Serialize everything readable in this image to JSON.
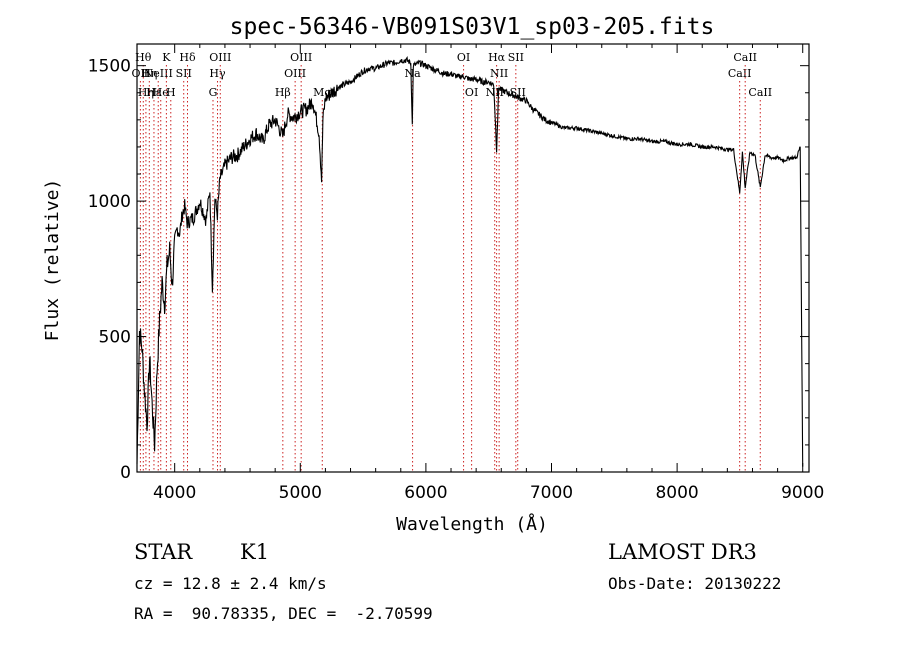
{
  "chart_data": {
    "type": "line",
    "title": "spec-56346-VB091S03V1_sp03-205.fits",
    "xlabel": "Wavelength (Å)",
    "ylabel": "Flux (relative)",
    "xlim": [
      3700,
      9050
    ],
    "ylim": [
      0,
      1580
    ],
    "x_ticks": [
      4000,
      5000,
      6000,
      7000,
      8000,
      9000
    ],
    "y_ticks": [
      0,
      500,
      1000,
      1500
    ],
    "x_tick_labels": [
      "4000",
      "5000",
      "6000",
      "7000",
      "8000",
      "9000"
    ],
    "y_tick_labels": [
      "0",
      "500",
      "1000",
      "1500"
    ],
    "grid": false,
    "series": [
      {
        "name": "flux",
        "color": "#000000",
        "x": [
          3700,
          3720,
          3740,
          3760,
          3780,
          3800,
          3820,
          3840,
          3860,
          3880,
          3900,
          3920,
          3940,
          3960,
          3980,
          4000,
          4020,
          4040,
          4060,
          4080,
          4100,
          4150,
          4200,
          4250,
          4280,
          4300,
          4320,
          4340,
          4360,
          4400,
          4450,
          4500,
          4550,
          4600,
          4650,
          4700,
          4750,
          4800,
          4860,
          4900,
          4950,
          5000,
          5050,
          5100,
          5150,
          5170,
          5180,
          5200,
          5250,
          5300,
          5350,
          5400,
          5450,
          5500,
          5550,
          5600,
          5650,
          5700,
          5750,
          5800,
          5850,
          5880,
          5892,
          5900,
          5950,
          6000,
          6050,
          6100,
          6150,
          6200,
          6250,
          6300,
          6350,
          6400,
          6450,
          6500,
          6540,
          6563,
          6580,
          6600,
          6650,
          6700,
          6750,
          6800,
          6850,
          6900,
          6950,
          7000,
          7100,
          7200,
          7300,
          7400,
          7500,
          7600,
          7700,
          7800,
          7900,
          8000,
          8100,
          8200,
          8300,
          8400,
          8450,
          8498,
          8520,
          8542,
          8580,
          8620,
          8662,
          8700,
          8750,
          8800,
          8850,
          8900,
          8950,
          8980,
          9000
        ],
        "y": [
          30,
          520,
          460,
          300,
          180,
          420,
          250,
          100,
          380,
          560,
          700,
          620,
          760,
          820,
          690,
          850,
          900,
          880,
          950,
          980,
          920,
          940,
          1000,
          930,
          1040,
          680,
          1010,
          950,
          1080,
          1130,
          1160,
          1170,
          1200,
          1230,
          1250,
          1220,
          1280,
          1300,
          1240,
          1320,
          1310,
          1330,
          1340,
          1370,
          1250,
          1080,
          1300,
          1380,
          1400,
          1420,
          1430,
          1440,
          1460,
          1480,
          1490,
          1490,
          1500,
          1510,
          1510,
          1520,
          1520,
          1510,
          1280,
          1500,
          1510,
          1500,
          1490,
          1480,
          1470,
          1470,
          1460,
          1460,
          1450,
          1450,
          1440,
          1440,
          1430,
          1190,
          1420,
          1410,
          1400,
          1390,
          1380,
          1370,
          1340,
          1320,
          1300,
          1290,
          1270,
          1270,
          1260,
          1250,
          1240,
          1230,
          1230,
          1220,
          1220,
          1210,
          1210,
          1200,
          1200,
          1190,
          1190,
          1030,
          1180,
          1050,
          1180,
          1170,
          1050,
          1170,
          1160,
          1160,
          1150,
          1160,
          1160,
          1200,
          20
        ]
      }
    ],
    "lines": [
      {
        "wavelength": 3727,
        "label": "OII",
        "row": 2
      },
      {
        "wavelength": 3750,
        "label": "Hθ",
        "row": 1
      },
      {
        "wavelength": 3771,
        "label": "Hη",
        "row": 3
      },
      {
        "wavelength": 3798,
        "label": "Hη",
        "row": 2
      },
      {
        "wavelength": 3835,
        "label": "Hε",
        "row": 3
      },
      {
        "wavelength": 3869,
        "label": "NeIII",
        "row": 2
      },
      {
        "wavelength": 3889,
        "label": "He",
        "row": 3
      },
      {
        "wavelength": 3934,
        "label": "K",
        "row": 1
      },
      {
        "wavelength": 3969,
        "label": "H",
        "row": 3
      },
      {
        "wavelength": 4072,
        "label": "SII",
        "row": 2
      },
      {
        "wavelength": 4102,
        "label": "Hδ",
        "row": 1
      },
      {
        "wavelength": 4305,
        "label": "G",
        "row": 3
      },
      {
        "wavelength": 4341,
        "label": "Hγ",
        "row": 2
      },
      {
        "wavelength": 4363,
        "label": "OIII",
        "row": 1
      },
      {
        "wavelength": 4861,
        "label": "Hβ",
        "row": 3
      },
      {
        "wavelength": 4959,
        "label": "OIII",
        "row": 2
      },
      {
        "wavelength": 5007,
        "label": "OIII",
        "row": 1
      },
      {
        "wavelength": 5175,
        "label": "Mg",
        "row": 3
      },
      {
        "wavelength": 5894,
        "label": "Na",
        "row": 2
      },
      {
        "wavelength": 6300,
        "label": "OI",
        "row": 1
      },
      {
        "wavelength": 6364,
        "label": "OI",
        "row": 3
      },
      {
        "wavelength": 6548,
        "label": "NII",
        "row": 3
      },
      {
        "wavelength": 6563,
        "label": "Hα",
        "row": 1
      },
      {
        "wavelength": 6583,
        "label": "NII",
        "row": 2
      },
      {
        "wavelength": 6716,
        "label": "SII",
        "row": 1
      },
      {
        "wavelength": 6731,
        "label": "SII",
        "row": 3
      },
      {
        "wavelength": 8498,
        "label": "CaII",
        "row": 2
      },
      {
        "wavelength": 8542,
        "label": "CaII",
        "row": 1
      },
      {
        "wavelength": 8662,
        "label": "CaII",
        "row": 3
      }
    ]
  },
  "info": {
    "object_class": "STAR",
    "subclass": "K1",
    "redshift": "cz = 12.8 ± 2.4 km/s",
    "coords": "RA =  90.78335, DEC =  -2.70599",
    "survey": "LAMOST DR3",
    "obs_date": "Obs-Date: 20130222"
  }
}
